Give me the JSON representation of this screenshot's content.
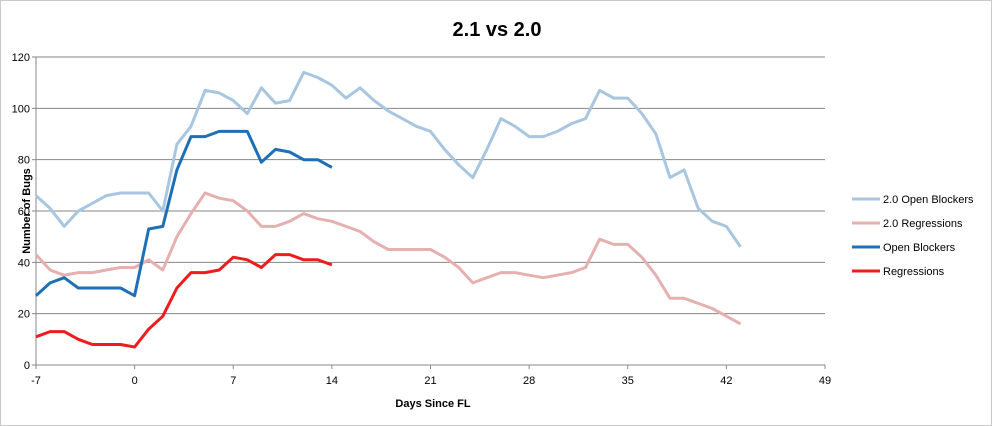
{
  "chart_data": {
    "type": "line",
    "title": "2.1 vs 2.0",
    "xlabel": "Days Since FL",
    "ylabel": "Number of Bugs",
    "xlim": [
      -7,
      49
    ],
    "ylim": [
      0,
      120
    ],
    "x_ticks": [
      -7,
      0,
      7,
      14,
      21,
      28,
      35,
      42,
      49
    ],
    "y_ticks": [
      0,
      20,
      40,
      60,
      80,
      100,
      120
    ],
    "grid": "horizontal",
    "legend_position": "right",
    "series": [
      {
        "name": "2.0 Open Blockers",
        "color": "#a9c6e0",
        "x": [
          -7,
          -6,
          -5,
          -4,
          -3,
          -2,
          -1,
          0,
          1,
          2,
          3,
          4,
          5,
          6,
          7,
          8,
          9,
          10,
          11,
          12,
          13,
          14,
          15,
          16,
          17,
          18,
          19,
          20,
          21,
          22,
          23,
          24,
          25,
          26,
          27,
          28,
          29,
          30,
          31,
          32,
          33,
          34,
          35,
          36,
          37,
          38,
          39,
          40,
          41,
          42,
          43
        ],
        "values": [
          66,
          61,
          54,
          60,
          63,
          66,
          67,
          67,
          67,
          60,
          86,
          93,
          107,
          106,
          103,
          98,
          108,
          102,
          103,
          114,
          112,
          109,
          104,
          108,
          103,
          99,
          96,
          93,
          91,
          84,
          78,
          73,
          84,
          96,
          93,
          89,
          89,
          91,
          94,
          96,
          107,
          104,
          104,
          98,
          90,
          73,
          76,
          61,
          56,
          54,
          46
        ]
      },
      {
        "name": "2.0 Regressions",
        "color": "#e6b0b0",
        "x": [
          -7,
          -6,
          -5,
          -4,
          -3,
          -2,
          -1,
          0,
          1,
          2,
          3,
          4,
          5,
          6,
          7,
          8,
          9,
          10,
          11,
          12,
          13,
          14,
          15,
          16,
          17,
          18,
          19,
          20,
          21,
          22,
          23,
          24,
          25,
          26,
          27,
          28,
          29,
          30,
          31,
          32,
          33,
          34,
          35,
          36,
          37,
          38,
          39,
          40,
          41,
          42,
          43
        ],
        "values": [
          43,
          37,
          35,
          36,
          36,
          37,
          38,
          38,
          41,
          37,
          50,
          59,
          67,
          65,
          64,
          60,
          54,
          54,
          56,
          59,
          57,
          56,
          54,
          52,
          48,
          45,
          45,
          45,
          45,
          42,
          38,
          32,
          34,
          36,
          36,
          35,
          34,
          35,
          36,
          38,
          49,
          47,
          47,
          42,
          35,
          26,
          26,
          24,
          22,
          19,
          16
        ]
      },
      {
        "name": "Open Blockers",
        "color": "#1f6fb6",
        "x": [
          -7,
          -6,
          -5,
          -4,
          -3,
          -2,
          -1,
          0,
          1,
          2,
          3,
          4,
          5,
          6,
          7,
          8,
          9,
          10,
          11,
          12,
          13,
          14
        ],
        "values": [
          27,
          32,
          34,
          30,
          30,
          30,
          30,
          27,
          53,
          54,
          76,
          89,
          89,
          91,
          91,
          91,
          79,
          84,
          83,
          80,
          80,
          77
        ]
      },
      {
        "name": "Regressions",
        "color": "#ee1c1c",
        "x": [
          -7,
          -6,
          -5,
          -4,
          -3,
          -2,
          -1,
          0,
          1,
          2,
          3,
          4,
          5,
          6,
          7,
          8,
          9,
          10,
          11,
          12,
          13,
          14
        ],
        "values": [
          11,
          13,
          13,
          10,
          8,
          8,
          8,
          7,
          14,
          19,
          30,
          36,
          36,
          37,
          42,
          41,
          38,
          43,
          43,
          41,
          41,
          39
        ]
      }
    ]
  }
}
